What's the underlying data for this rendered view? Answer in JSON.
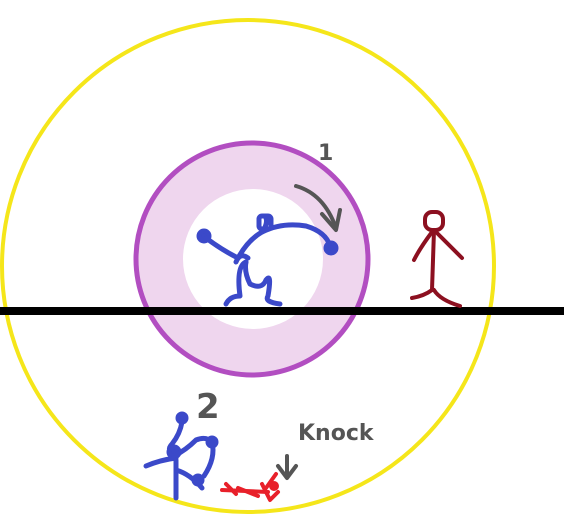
{
  "labels": {
    "step_one": "1",
    "step_two": "2",
    "knock": "Knock"
  },
  "colors": {
    "outer_ring": "#f5e61a",
    "inner_ring": "#b24ec1",
    "inner_fill": "#efd6ee",
    "ground": "#000000",
    "blue_figure": "#3b49c9",
    "dark_red_figure": "#8c1020",
    "red_figure": "#e8202a",
    "annotation": "#555555"
  },
  "icons": {
    "arrow": "curved-arrow-icon",
    "down_arrow": "down-arrow-icon"
  }
}
